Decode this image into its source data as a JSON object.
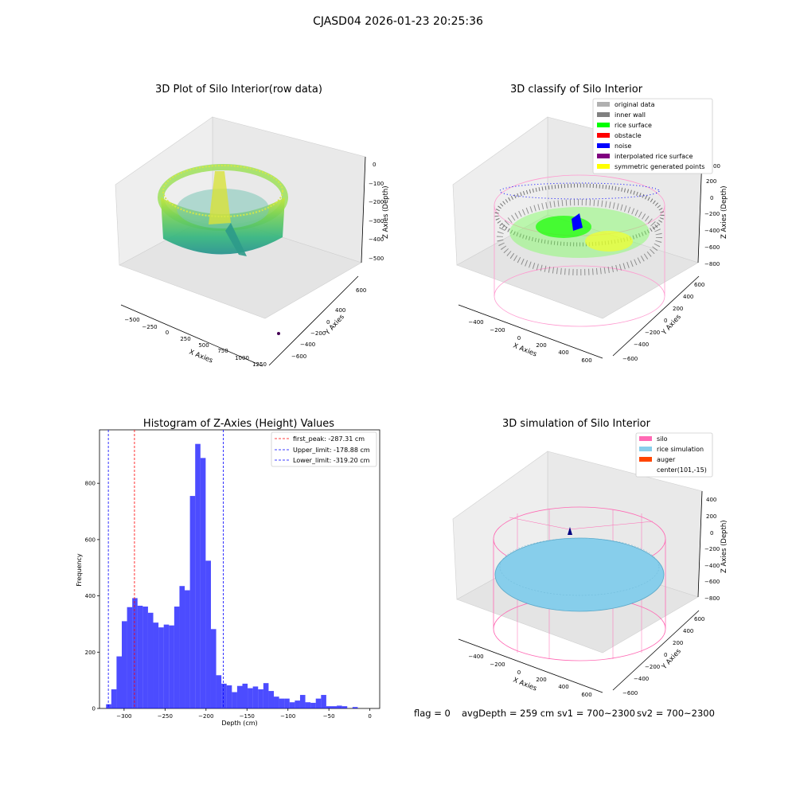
{
  "figure": {
    "suptitle": "CJASD04 2026-01-23 20:25:36",
    "footer": {
      "flag": "flag = 0",
      "avg_depth": "avgDepth = 259 cm",
      "sv1": "sv1 = 700~2300",
      "sv2": "sv2 = 700~2300"
    }
  },
  "panels": {
    "raw": {
      "title": "3D Plot of Silo Interior(row data)",
      "xlabel": "X Axies",
      "ylabel": "Y Axies",
      "zlabel": "Z Axies (Depth)",
      "xticks": [
        "−500",
        "−250",
        "0",
        "250",
        "500",
        "750",
        "1000",
        "1250"
      ],
      "yticks": [
        "600",
        "400",
        "200",
        "0",
        "−200",
        "−400",
        "−600"
      ],
      "zticks": [
        "0",
        "−100",
        "−200",
        "−300",
        "−400",
        "−500"
      ],
      "colormap": [
        "#fde725",
        "#8fd744",
        "#35b779",
        "#21918c",
        "#31688e",
        "#440154"
      ]
    },
    "classify": {
      "title": "3D classify of Silo Interior",
      "xlabel": "X Axies",
      "ylabel": "Y Axies",
      "zlabel": "Z Axies (Depth)",
      "xticks": [
        "−400",
        "−200",
        "0",
        "200",
        "400",
        "600"
      ],
      "yticks": [
        "600",
        "400",
        "200",
        "0",
        "−200",
        "−400",
        "−600"
      ],
      "zticks": [
        "200",
        "0",
        "−200",
        "−400",
        "−600",
        "−800"
      ],
      "zticks_partial_top": "00",
      "legend": [
        {
          "label": "original data",
          "color": "#b0b0b0"
        },
        {
          "label": "inner wall",
          "color": "#808080"
        },
        {
          "label": "rice surface",
          "color": "#00ff00"
        },
        {
          "label": "obstacle",
          "color": "#ff0000"
        },
        {
          "label": "noise",
          "color": "#0000ff"
        },
        {
          "label": "interpolated rice surface",
          "color": "#800080"
        },
        {
          "label": "symmetric generated points",
          "color": "#ffff00"
        }
      ]
    },
    "simulation": {
      "title": "3D simulation of Silo Interior",
      "xlabel": "X Axies",
      "ylabel": "Y Axies",
      "zlabel": "Z Axies (Depth)",
      "xticks": [
        "−400",
        "−200",
        "0",
        "200",
        "400",
        "600"
      ],
      "yticks": [
        "600",
        "400",
        "200",
        "0",
        "−200",
        "−400",
        "−600"
      ],
      "zticks": [
        "400",
        "200",
        "0",
        "−200",
        "−400",
        "−600",
        "−800"
      ],
      "legend": [
        {
          "label": "silo",
          "color": "#ff69b4"
        },
        {
          "label": "rice simulation",
          "color": "#87ceeb"
        },
        {
          "label": "auger",
          "color": "#ff4500"
        },
        {
          "label": "center(101,-15)",
          "color": "#ffffff"
        }
      ]
    }
  },
  "chart_data": {
    "type": "bar",
    "title": "Histogram of Z-Axies (Height) Values",
    "xlabel": "Depth (cm)",
    "ylabel": "Frequency",
    "xlim": [
      -330,
      12
    ],
    "ylim": [
      0,
      990
    ],
    "xticks": [
      -300,
      -250,
      -200,
      -150,
      -100,
      -50,
      0
    ],
    "xtick_labels": [
      "−300",
      "−250",
      "−200",
      "−150",
      "−100",
      "−50",
      "0"
    ],
    "yticks": [
      0,
      200,
      400,
      600,
      800
    ],
    "bar_color": "#0000ff",
    "bin_edges_start": -322,
    "bin_width": 6.4,
    "values": [
      15,
      68,
      185,
      310,
      360,
      392,
      365,
      362,
      340,
      305,
      288,
      298,
      295,
      362,
      435,
      420,
      755,
      940,
      890,
      525,
      282,
      118,
      88,
      82,
      58,
      80,
      88,
      72,
      78,
      68,
      90,
      62,
      42,
      35,
      35,
      22,
      28,
      48,
      22,
      20,
      35,
      48,
      8,
      8,
      10,
      8,
      0,
      5,
      0
    ],
    "vlines": [
      {
        "x": -287.31,
        "color": "#ff0000",
        "label": "first_peak: -287.31 cm"
      },
      {
        "x": -178.88,
        "color": "#0000ff",
        "label": "Upper_limit: -178.88 cm"
      },
      {
        "x": -319.2,
        "color": "#0000ff",
        "label": "Lower_limit: -319.20 cm"
      }
    ],
    "legend_position": "top-right"
  }
}
